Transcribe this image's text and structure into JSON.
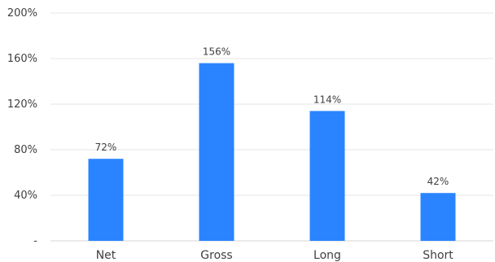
{
  "chart_data": {
    "type": "bar",
    "categories": [
      "Net",
      "Gross",
      "Long",
      "Short"
    ],
    "values": [
      72,
      156,
      114,
      42
    ],
    "data_labels": [
      "72%",
      "156%",
      "114%",
      "42%"
    ],
    "ylim": [
      0,
      200
    ],
    "yticks": [
      0,
      40,
      80,
      120,
      160,
      200
    ],
    "ytick_labels": [
      "-",
      "40%",
      "80%",
      "120%",
      "160%",
      "200%"
    ],
    "grid": true,
    "bar_color": "#2a84ff"
  }
}
